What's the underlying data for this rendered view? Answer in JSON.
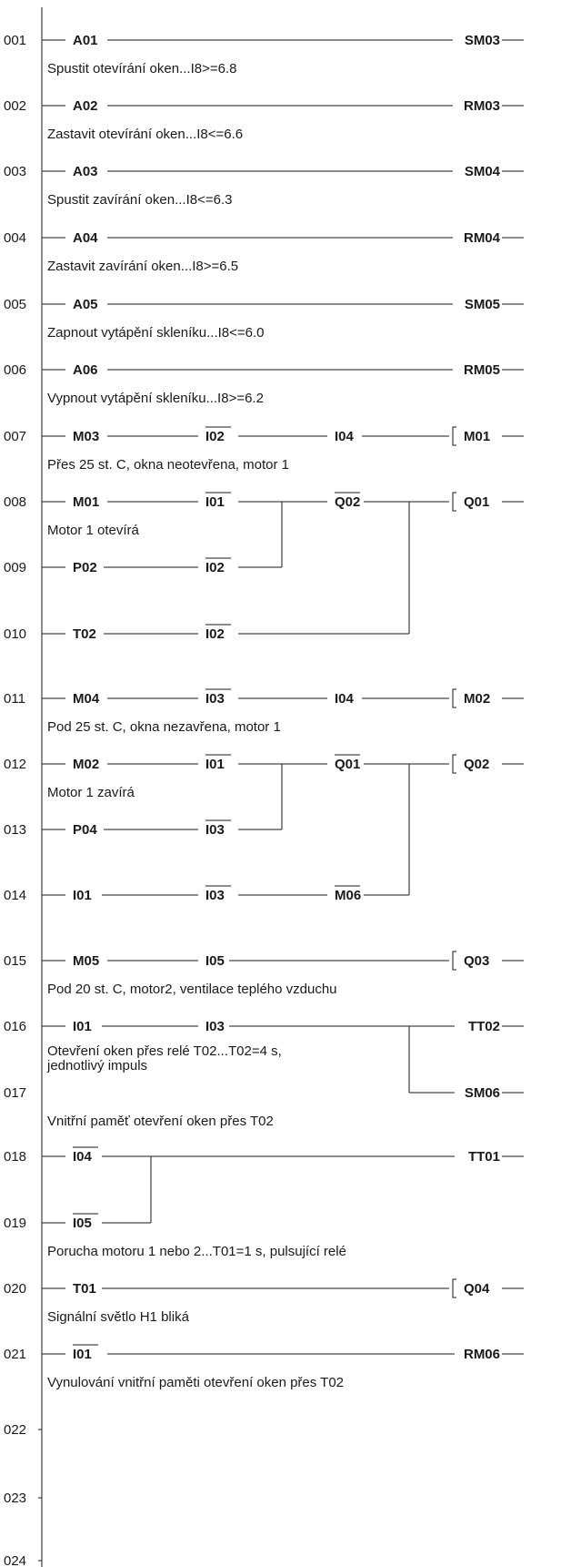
{
  "rungs": [
    {
      "num": "001",
      "comment": "Spustit otevírání oken...I8>=6.8",
      "contacts": [
        {
          "label": "A01",
          "neg": false
        }
      ],
      "coil": {
        "label": "SM03",
        "bracket": false
      }
    },
    {
      "num": "002",
      "comment": "Zastavit otevírání oken...I8<=6.6",
      "contacts": [
        {
          "label": "A02",
          "neg": false
        }
      ],
      "coil": {
        "label": "RM03",
        "bracket": false
      }
    },
    {
      "num": "003",
      "comment": "Spustit zavírání oken...I8<=6.3",
      "contacts": [
        {
          "label": "A03",
          "neg": false
        }
      ],
      "coil": {
        "label": "SM04",
        "bracket": false
      }
    },
    {
      "num": "004",
      "comment": "Zastavit zavírání oken...I8>=6.5",
      "contacts": [
        {
          "label": "A04",
          "neg": false
        }
      ],
      "coil": {
        "label": "RM04",
        "bracket": false
      }
    },
    {
      "num": "005",
      "comment": "Zapnout vytápění skleníku...I8<=6.0",
      "contacts": [
        {
          "label": "A05",
          "neg": false
        }
      ],
      "coil": {
        "label": "SM05",
        "bracket": false
      }
    },
    {
      "num": "006",
      "comment": "Vypnout vytápění skleníku...I8>=6.2",
      "contacts": [
        {
          "label": "A06",
          "neg": false
        }
      ],
      "coil": {
        "label": "RM05",
        "bracket": false
      }
    },
    {
      "num": "007",
      "comment": "Přes 25 st. C, okna neotevřena, motor 1",
      "contacts": [
        {
          "label": "M03",
          "neg": false
        },
        {
          "label": "I02",
          "neg": true
        },
        {
          "label": "I04",
          "neg": false
        }
      ],
      "coil": {
        "label": "M01",
        "bracket": true
      }
    },
    {
      "num": "008",
      "comment": "Motor 1 otevírá",
      "contacts": [
        {
          "label": "M01",
          "neg": false
        },
        {
          "label": "I01",
          "neg": true
        },
        {
          "label": "Q02",
          "neg": true
        }
      ],
      "coil": {
        "label": "Q01",
        "bracket": true
      }
    },
    {
      "num": "009",
      "comment": "",
      "contacts": [
        {
          "label": "P02",
          "neg": false
        },
        {
          "label": "I02",
          "neg": true
        }
      ]
    },
    {
      "num": "010",
      "comment": "",
      "contacts": [
        {
          "label": "T02",
          "neg": false
        },
        {
          "label": "I02",
          "neg": true
        }
      ]
    },
    {
      "num": "011",
      "comment": "Pod 25 st. C, okna nezavřena, motor 1",
      "contacts": [
        {
          "label": "M04",
          "neg": false
        },
        {
          "label": "I03",
          "neg": true
        },
        {
          "label": "I04",
          "neg": false
        }
      ],
      "coil": {
        "label": "M02",
        "bracket": true
      }
    },
    {
      "num": "012",
      "comment": "Motor 1 zavírá",
      "contacts": [
        {
          "label": "M02",
          "neg": false
        },
        {
          "label": "I01",
          "neg": true
        },
        {
          "label": "Q01",
          "neg": true
        }
      ],
      "coil": {
        "label": "Q02",
        "bracket": true
      }
    },
    {
      "num": "013",
      "comment": "",
      "contacts": [
        {
          "label": "P04",
          "neg": false
        },
        {
          "label": "I03",
          "neg": true
        }
      ]
    },
    {
      "num": "014",
      "comment": "",
      "contacts": [
        {
          "label": "I01",
          "neg": false
        },
        {
          "label": "I03",
          "neg": true
        },
        {
          "label": "M06",
          "neg": true
        }
      ]
    },
    {
      "num": "015",
      "comment": "Pod 20 st. C, motor2, ventilace teplého vzduchu",
      "contacts": [
        {
          "label": "M05",
          "neg": false
        },
        {
          "label": "I05",
          "neg": false
        }
      ],
      "coil": {
        "label": "Q03",
        "bracket": true
      }
    },
    {
      "num": "016",
      "comment": "Otevření oken přes relé T02...T02=4 s,\njednotlivý impuls",
      "contacts": [
        {
          "label": "I01",
          "neg": false
        },
        {
          "label": "I03",
          "neg": false
        }
      ],
      "coil": {
        "label": "TT02",
        "bracket": false
      }
    },
    {
      "num": "017",
      "comment": "Vnitřní paměť otevření oken přes T02",
      "contacts": [],
      "coil": {
        "label": "SM06",
        "bracket": false
      }
    },
    {
      "num": "018",
      "comment": "",
      "contacts": [
        {
          "label": "I04",
          "neg": true
        }
      ],
      "coil": {
        "label": "TT01",
        "bracket": false
      }
    },
    {
      "num": "019",
      "comment": "Porucha motoru 1 nebo 2...T01=1 s, pulsující relé",
      "contacts": [
        {
          "label": "I05",
          "neg": true
        }
      ]
    },
    {
      "num": "020",
      "comment": "Signální světlo H1 bliká",
      "contacts": [
        {
          "label": "T01",
          "neg": false
        }
      ],
      "coil": {
        "label": "Q04",
        "bracket": true
      }
    },
    {
      "num": "021",
      "comment": "Vynulování vnitřní paměti otevření oken přes T02",
      "contacts": [
        {
          "label": "I01",
          "neg": true
        }
      ],
      "coil": {
        "label": "RM06",
        "bracket": false
      }
    },
    {
      "num": "022",
      "comment": "",
      "contacts": []
    },
    {
      "num": "023",
      "comment": "",
      "contacts": []
    },
    {
      "num": "024",
      "comment": "",
      "contacts": []
    }
  ]
}
